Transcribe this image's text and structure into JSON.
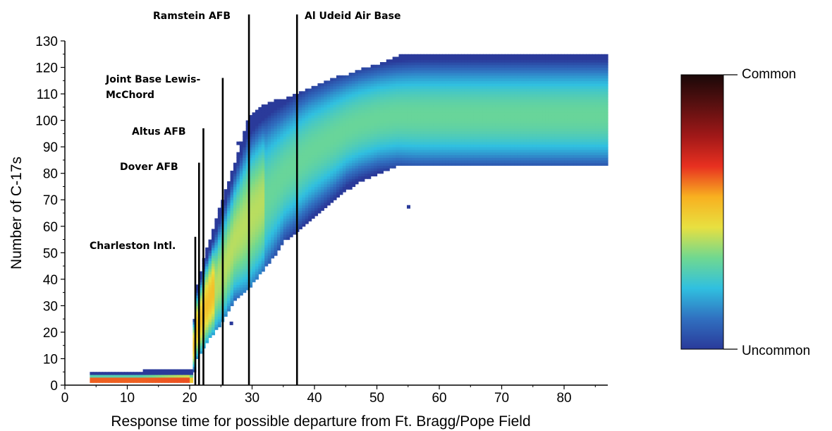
{
  "chart_data": {
    "type": "heatmap",
    "xlabel": "Response time for possible departure from Ft. Bragg/Pope Field",
    "ylabel": "Number of C-17s",
    "xlim": [
      0,
      87
    ],
    "ylim": [
      0,
      130
    ],
    "x_ticks": [
      0,
      10,
      20,
      30,
      40,
      50,
      60,
      70,
      80
    ],
    "y_ticks": [
      0,
      10,
      20,
      30,
      40,
      50,
      60,
      70,
      80,
      90,
      100,
      110,
      120,
      130
    ],
    "grid": false,
    "colorbar": {
      "top_label": "Common",
      "bottom_label": "Uncommon",
      "colors": [
        "#1a0808",
        "#5a1010",
        "#a01818",
        "#e83020",
        "#f8b020",
        "#e8e040",
        "#70d890",
        "#30c0e0",
        "#3070c0",
        "#2a3a9a"
      ]
    },
    "density_band": {
      "x": [
        4,
        12,
        20,
        20.5,
        21,
        22,
        23,
        25,
        27,
        29,
        31,
        33,
        35,
        37,
        39,
        41,
        43,
        45,
        47,
        50,
        53,
        56,
        60,
        70,
        80,
        87
      ],
      "lower": [
        1,
        1,
        1,
        5,
        10,
        14,
        18,
        24,
        32,
        36,
        42,
        48,
        55,
        58,
        62,
        66,
        70,
        74,
        77,
        80,
        83,
        83,
        83,
        83,
        83,
        83
      ],
      "center": [
        2,
        2,
        2,
        15,
        22,
        28,
        33,
        42,
        55,
        62,
        68,
        74,
        80,
        84,
        88,
        91,
        94,
        97,
        99,
        101,
        102,
        102,
        102,
        102,
        102,
        102
      ],
      "upper": [
        5,
        5,
        6,
        25,
        38,
        48,
        55,
        70,
        84,
        100,
        105,
        107,
        108,
        110,
        112,
        114,
        116,
        117,
        119,
        121,
        124,
        125,
        125,
        125,
        125,
        125
      ]
    },
    "annotations": [
      {
        "label": "Charleston Intl.",
        "x": 20.9,
        "y_top": 56
      },
      {
        "label": "Dover AFB",
        "x": 21.5,
        "y_top": 84
      },
      {
        "label": "Altus AFB",
        "x": 22.2,
        "y_top": 97
      },
      {
        "label": "Joint Base Lewis-McChord",
        "x": 25.3,
        "y_top": 116
      },
      {
        "label": "Ramstein AFB",
        "x": 29.5,
        "y_top": 140
      },
      {
        "label": "Al Udeid Air Base",
        "x": 37.2,
        "y_top": 140
      }
    ]
  }
}
